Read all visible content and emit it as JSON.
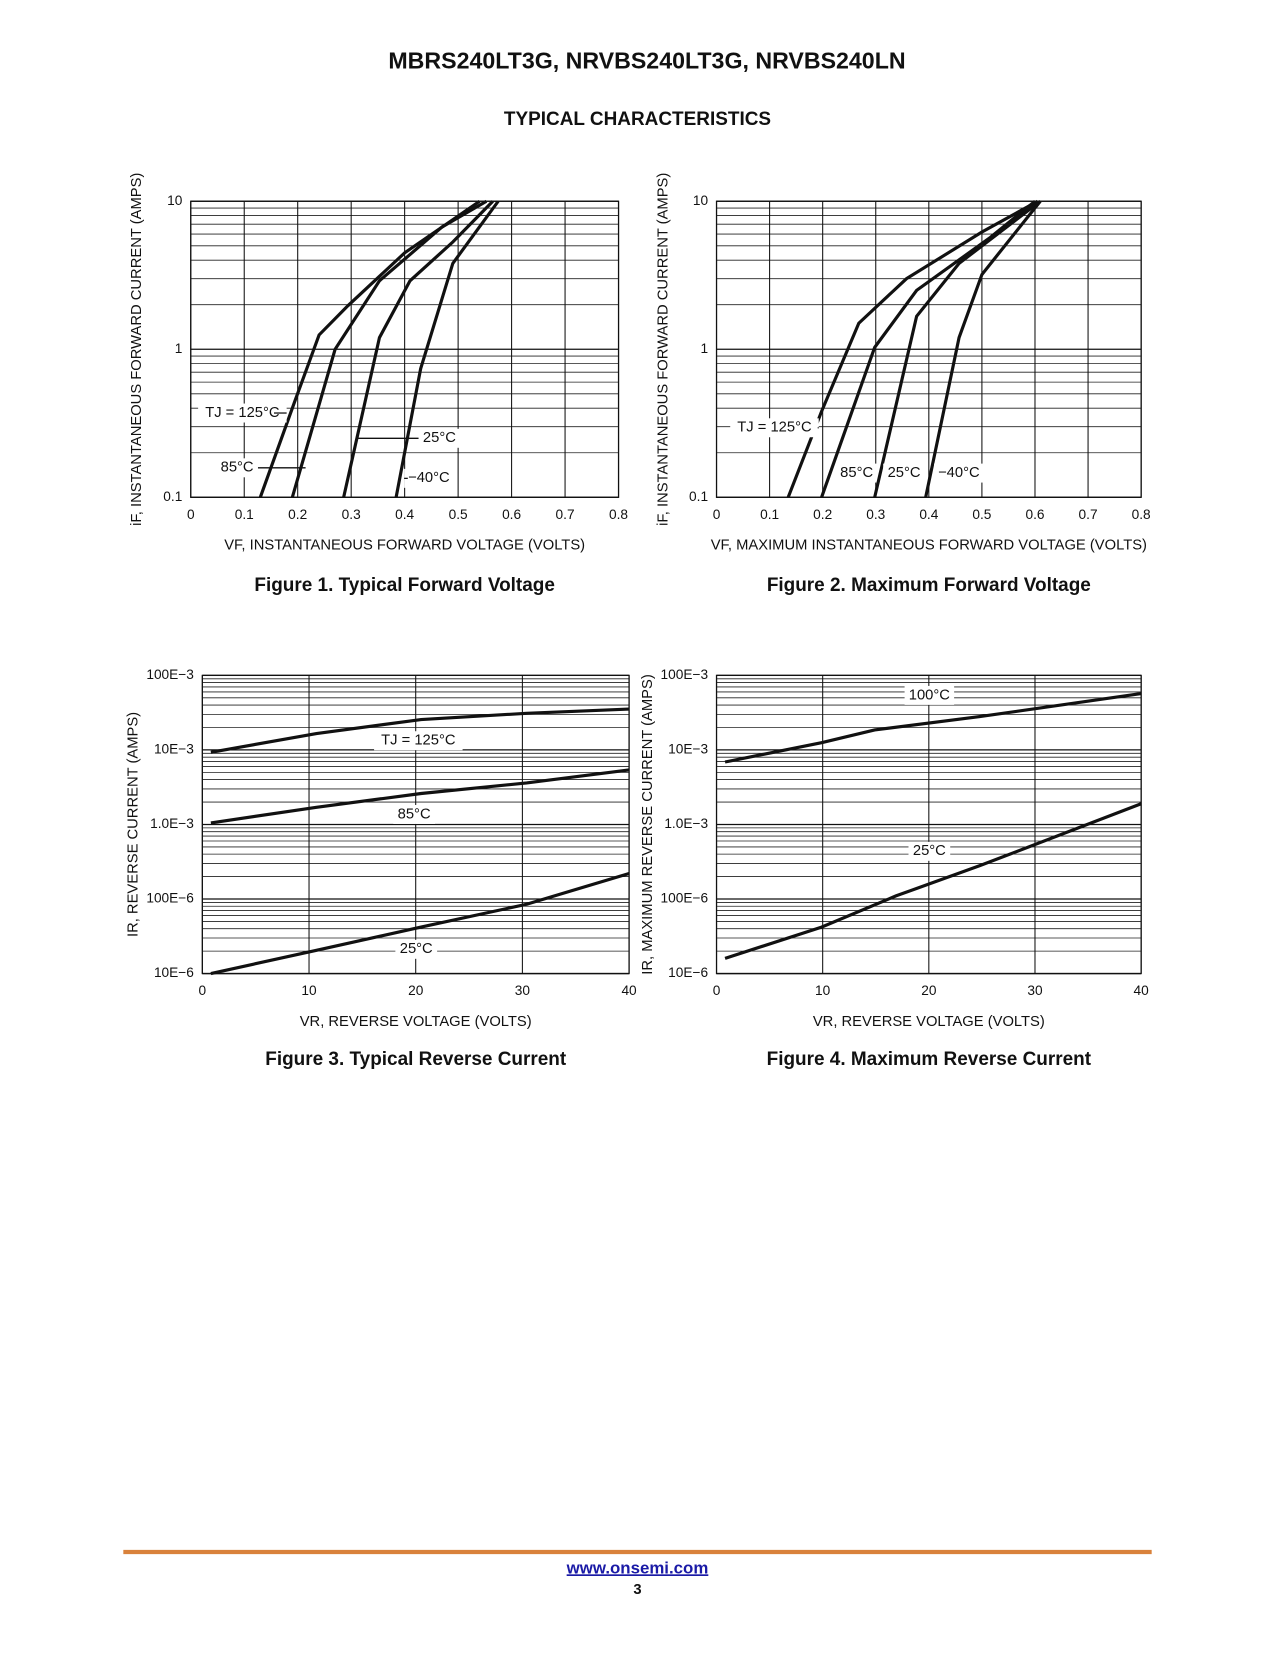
{
  "header": {
    "title": "MBRS240LT3G, NRVBS240LT3G, NRVBS240LN",
    "section": "TYPICAL CHARACTERISTICS"
  },
  "chart_data": [
    {
      "type": "line",
      "caption": "Figure 1. Typical Forward Voltage",
      "x_label": "VF, INSTANTANEOUS FORWARD VOLTAGE (VOLTS)",
      "y_label": "iF, INSTANTANEOUS FORWARD CURRENT (AMPS)",
      "xlim": [
        0,
        0.8
      ],
      "xticks": [
        0,
        0.1,
        0.2,
        0.3,
        0.4,
        0.5,
        0.6,
        0.7,
        0.8
      ],
      "ylim": [
        0.1,
        10
      ],
      "yticks": [
        0.1,
        1,
        10
      ],
      "log_y": true,
      "grid": true,
      "series": [
        {
          "name": "TJ = 125°C",
          "color": "#111111",
          "x": [
            0.13,
            0.195,
            0.24,
            0.294,
            0.4,
            0.54
          ],
          "values": [
            0.1,
            0.45,
            1.25,
            1.97,
            4.48,
            10
          ]
        },
        {
          "name": "85°C",
          "color": "#111111",
          "x": [
            0.19,
            0.27,
            0.353,
            0.47,
            0.553
          ],
          "values": [
            0.1,
            1,
            2.9,
            6.7,
            10
          ]
        },
        {
          "name": "25°C",
          "color": "#111111",
          "x": [
            0.286,
            0.353,
            0.41,
            0.49,
            0.565
          ],
          "values": [
            0.1,
            1.2,
            2.9,
            5.3,
            10
          ]
        },
        {
          "name": "−40°C",
          "color": "#111111",
          "x": [
            0.384,
            0.43,
            0.49,
            0.575
          ],
          "values": [
            0.1,
            0.74,
            3.8,
            10
          ]
        }
      ]
    },
    {
      "type": "line",
      "caption": "Figure 2. Maximum Forward Voltage",
      "x_label": "VF, MAXIMUM INSTANTANEOUS FORWARD VOLTAGE (VOLTS)",
      "y_label": "iF, INSTANTANEOUS FORWARD CURRENT (AMPS)",
      "xlim": [
        0,
        0.8
      ],
      "xticks": [
        0,
        0.1,
        0.2,
        0.3,
        0.4,
        0.5,
        0.6,
        0.7,
        0.8
      ],
      "ylim": [
        0.1,
        10
      ],
      "yticks": [
        0.1,
        1,
        10
      ],
      "log_y": true,
      "grid": true,
      "series": [
        {
          "name": "TJ = 125°C",
          "color": "#111111",
          "x": [
            0.135,
            0.198,
            0.268,
            0.358,
            0.5,
            0.605
          ],
          "values": [
            0.1,
            0.38,
            1.5,
            3,
            6.2,
            10
          ]
        },
        {
          "name": "85°C",
          "color": "#111111",
          "x": [
            0.198,
            0.298,
            0.377,
            0.516,
            0.6
          ],
          "values": [
            0.1,
            1.03,
            2.5,
            5.7,
            10
          ]
        },
        {
          "name": "25°C",
          "color": "#111111",
          "x": [
            0.298,
            0.377,
            0.457,
            0.61
          ],
          "values": [
            0.1,
            1.67,
            3.8,
            10
          ]
        },
        {
          "name": "−40°C",
          "color": "#111111",
          "x": [
            0.394,
            0.457,
            0.5,
            0.61
          ],
          "values": [
            0.1,
            1.2,
            3.2,
            10
          ]
        }
      ]
    },
    {
      "type": "line",
      "caption": "Figure 3. Typical Reverse Current",
      "x_label": "VR, REVERSE VOLTAGE (VOLTS)",
      "y_label": "IR, REVERSE CURRENT (AMPS)",
      "xlim": [
        0,
        40
      ],
      "xticks": [
        0,
        10,
        20,
        30,
        40
      ],
      "ylim": [
        1e-05,
        0.1
      ],
      "yticks": [
        {
          "value": 1e-05,
          "label": "10E−6"
        },
        {
          "value": 0.0001,
          "label": "100E−6"
        },
        {
          "value": 0.001,
          "label": "1.0E−3"
        },
        {
          "value": 0.01,
          "label": "10E−3"
        },
        {
          "value": 0.1,
          "label": "100E−3"
        }
      ],
      "log_y": true,
      "grid": true,
      "series": [
        {
          "name": "TJ = 125°C",
          "color": "#111111",
          "x": [
            0.8,
            10.7,
            20.5,
            30.4,
            40
          ],
          "values": [
            0.0093,
            0.0166,
            0.0256,
            0.031,
            0.0353
          ]
        },
        {
          "name": "85°C",
          "color": "#111111",
          "x": [
            0.8,
            10.7,
            20.5,
            30.4,
            40
          ],
          "values": [
            0.00105,
            0.0017,
            0.0026,
            0.0036,
            0.0054
          ]
        },
        {
          "name": "25°C",
          "color": "#111111",
          "x": [
            0.8,
            10.7,
            20.5,
            30.4,
            40
          ],
          "values": [
            1e-05,
            2.05e-05,
            4.2e-05,
            8.5e-05,
            0.00022
          ]
        }
      ]
    },
    {
      "type": "line",
      "caption": "Figure 4. Maximum Reverse Current",
      "x_label": "VR, REVERSE VOLTAGE (VOLTS)",
      "y_label": "IR, MAXIMUM REVERSE CURRENT (AMPS)",
      "xlim": [
        0,
        40
      ],
      "xticks": [
        0,
        10,
        20,
        30,
        40
      ],
      "ylim": [
        1e-05,
        0.1
      ],
      "yticks": [
        {
          "value": 1e-05,
          "label": "10E−6"
        },
        {
          "value": 0.0001,
          "label": "100E−6"
        },
        {
          "value": 0.001,
          "label": "1.0E−3"
        },
        {
          "value": 0.01,
          "label": "10E−3"
        },
        {
          "value": 0.1,
          "label": "100E−3"
        }
      ],
      "log_y": true,
      "grid": true,
      "series": [
        {
          "name": "100°C",
          "color": "#111111",
          "x": [
            0.8,
            9.9,
            14.9,
            24.8,
            40
          ],
          "values": [
            0.0069,
            0.0125,
            0.0185,
            0.028,
            0.057
          ]
        },
        {
          "name": "25°C",
          "color": "#111111",
          "x": [
            0.8,
            9.9,
            16.9,
            24.8,
            40
          ],
          "values": [
            1.6e-05,
            4.2e-05,
            0.00011,
            0.00028,
            0.0019
          ]
        }
      ]
    }
  ],
  "footer": {
    "link": "www.onsemi.com",
    "page": "3"
  }
}
